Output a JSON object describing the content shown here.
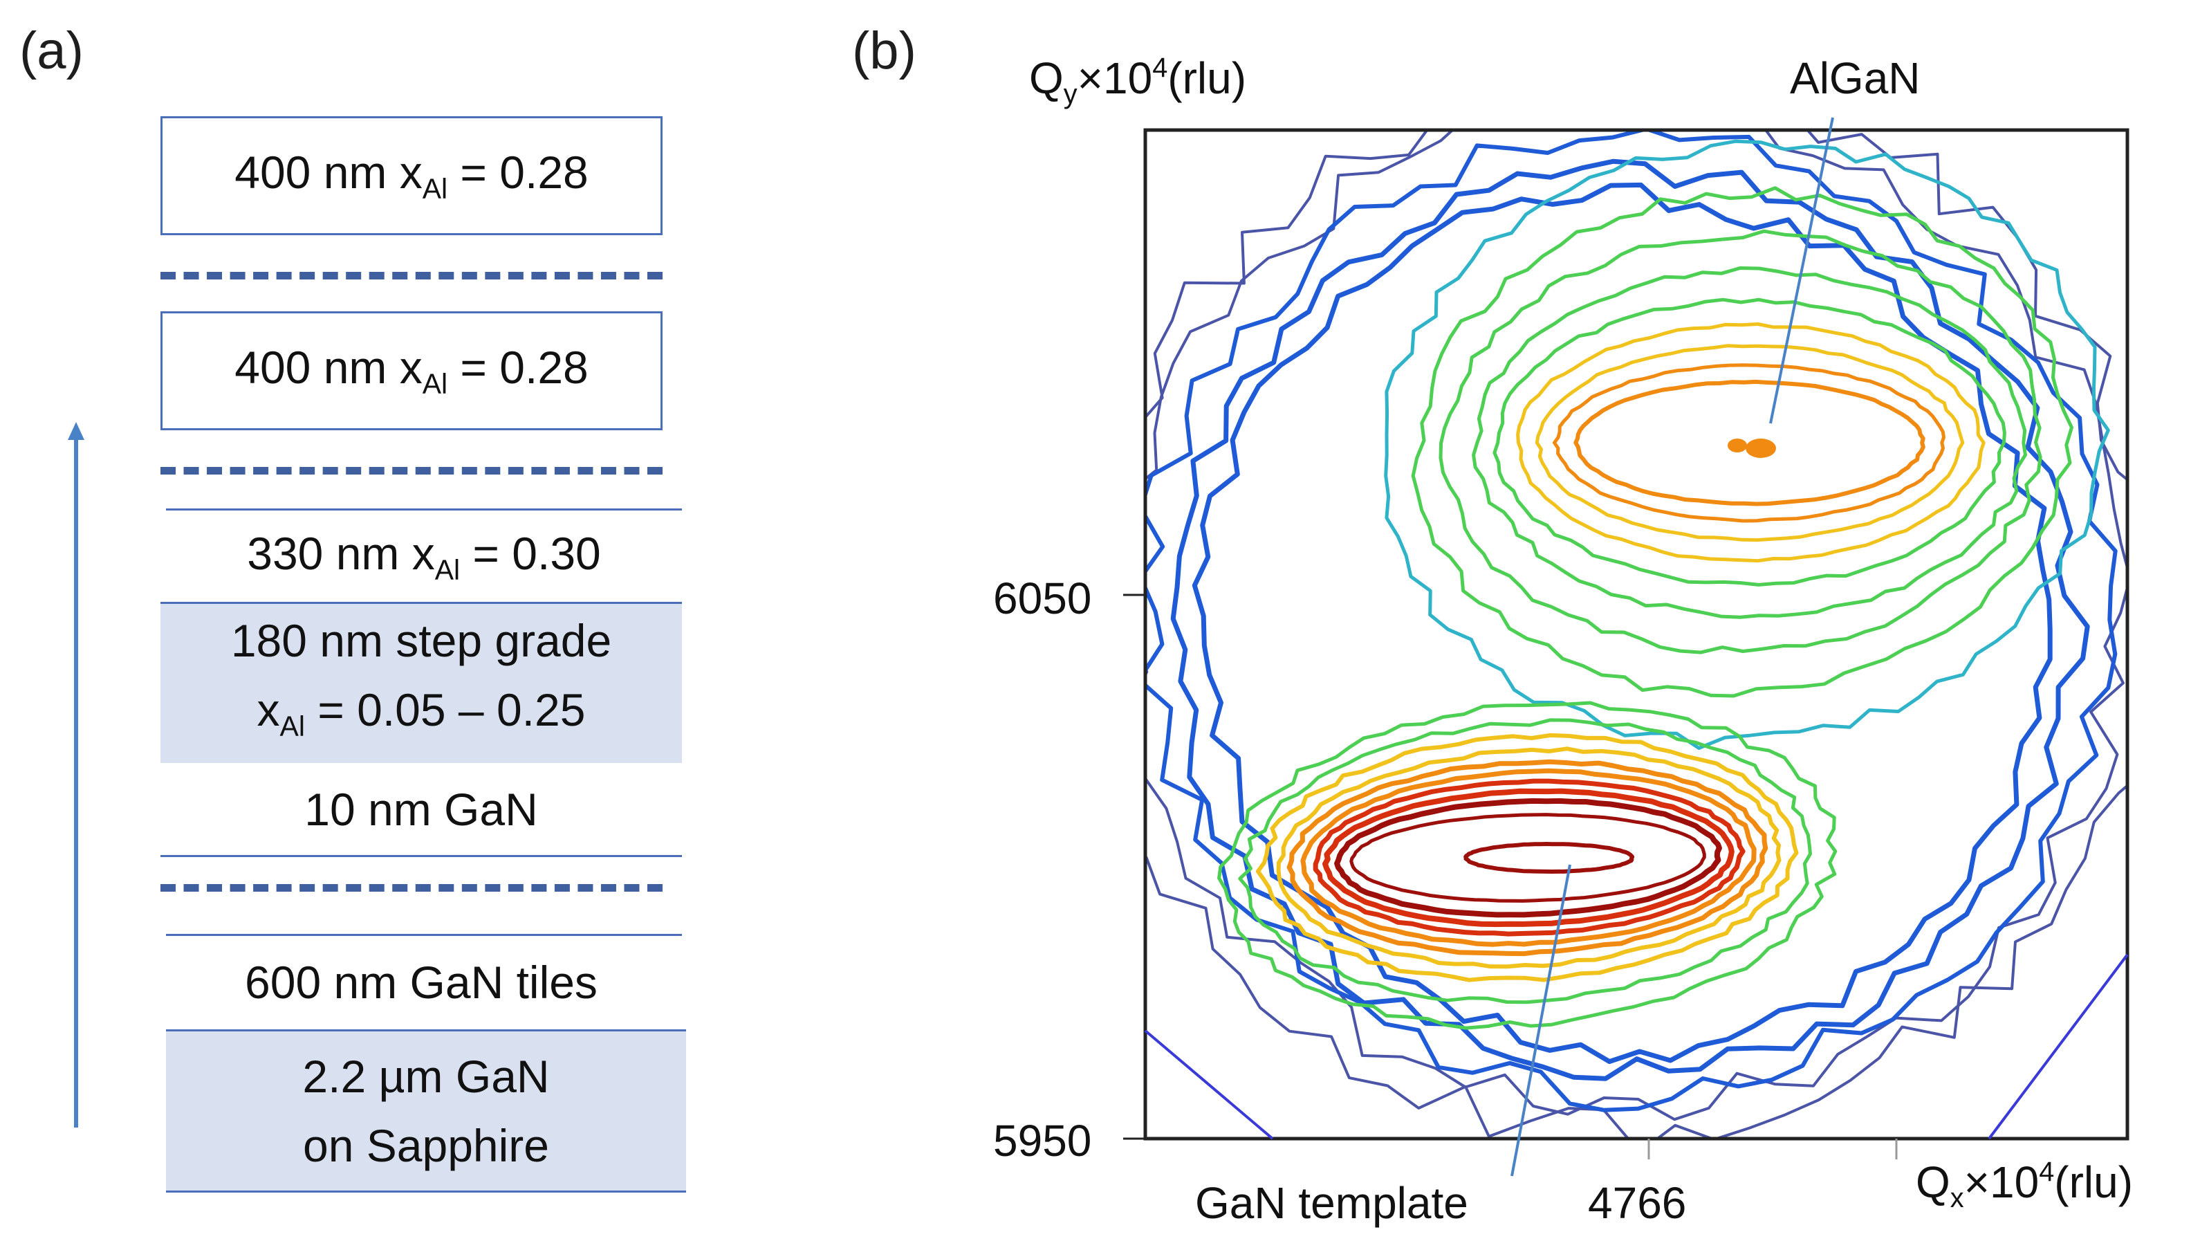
{
  "panel_a": {
    "label": "(a)",
    "layers": {
      "top_layer": "400 nm x",
      "top_sub": "Al",
      "top_value": " = 0.28",
      "second_layer": "400 nm x",
      "second_sub": "Al",
      "second_value": " = 0.28",
      "third_layer": "330 nm x",
      "third_sub": "Al",
      "third_value": " = 0.30",
      "grade_line1": "180 nm step grade",
      "grade_line2_prefix": "x",
      "grade_line2_sub": "Al",
      "grade_line2_value": " = 0.05 – 0.25",
      "gan_thin": "10 nm GaN",
      "gan_tiles": "600 nm GaN tiles",
      "substrate_line1": "2.2 µm GaN",
      "substrate_line2": "on Sapphire"
    }
  },
  "panel_b": {
    "label": "(b)",
    "y_axis_label_prefix": "Q",
    "y_axis_label_sub": "y",
    "y_axis_label_suffix": "×10",
    "y_axis_label_sup": "4",
    "y_axis_label_unit": "(rlu)",
    "x_axis_label_prefix": "Q",
    "x_axis_label_sub": "x",
    "x_axis_label_suffix": "×10",
    "x_axis_label_sup": "4",
    "x_axis_label_unit": "(rlu)",
    "y_ticks": [
      "6050",
      "5950"
    ],
    "x_ticks": [
      "4766"
    ],
    "annotations": {
      "algan": "AlGaN",
      "gan_template": "GaN template"
    },
    "colors": {
      "outer": "#4b55a8",
      "blue": "#1f5bd6",
      "cyan": "#2fb3c8",
      "green": "#4ccf52",
      "yellow": "#f2c21c",
      "orange": "#f08a10",
      "red": "#d8300e",
      "darkred": "#9c0f0a",
      "leader": "#4a82c8"
    }
  }
}
